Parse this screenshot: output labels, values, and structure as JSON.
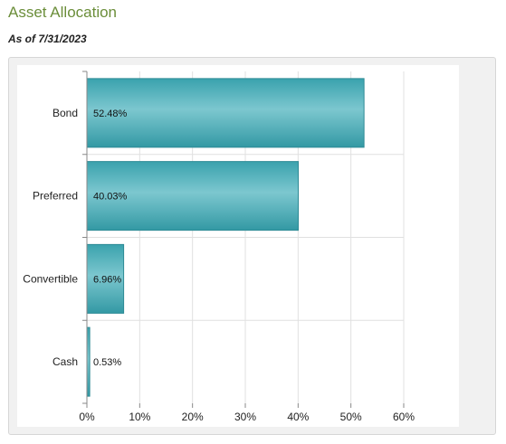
{
  "header": {
    "title": "Asset Allocation",
    "subtitle": "As of 7/31/2023"
  },
  "colors": {
    "bar_fill": "#45aab5",
    "bar_stroke": "#2d8a95",
    "title": "#6b8e3a",
    "grid": "#e0e0e0"
  },
  "chart_data": {
    "type": "bar",
    "orientation": "horizontal",
    "title": "",
    "xlabel": "",
    "ylabel": "",
    "categories": [
      "Bond",
      "Preferred",
      "Convertible",
      "Cash"
    ],
    "values": [
      52.48,
      40.03,
      6.96,
      0.53
    ],
    "data_labels": [
      "52.48%",
      "40.03%",
      "6.96%",
      "0.53%"
    ],
    "xlim": [
      0,
      60
    ],
    "xticks": [
      0,
      10,
      20,
      30,
      40,
      50,
      60
    ],
    "xtick_labels": [
      "0%",
      "10%",
      "20%",
      "30%",
      "40%",
      "50%",
      "60%"
    ],
    "grid": true,
    "legend": "none"
  }
}
